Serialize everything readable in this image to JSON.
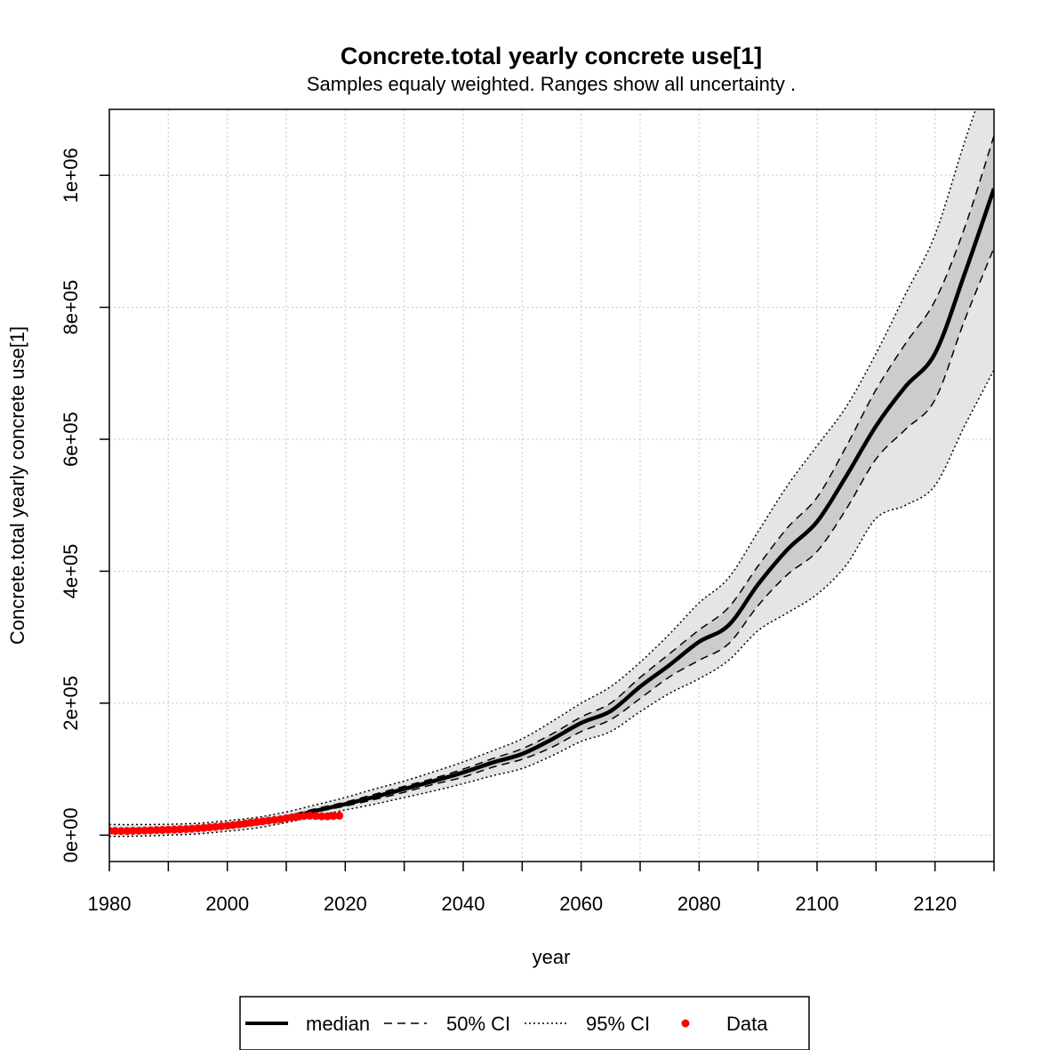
{
  "chart_data": {
    "type": "line",
    "title": "Concrete.total yearly concrete use[1]",
    "subtitle": "Samples equaly weighted. Ranges show  all uncertainty .",
    "xlabel": "year",
    "ylabel": "Concrete.total yearly concrete use[1]",
    "xlim": [
      1980,
      2130
    ],
    "ylim": [
      -40000,
      1100000
    ],
    "grid": true,
    "x_ticks": [
      1980,
      2000,
      2020,
      2040,
      2060,
      2080,
      2100,
      2120
    ],
    "x_minor_ticks": [
      1990,
      2010,
      2030,
      2050,
      2070,
      2090,
      2110,
      2130
    ],
    "x_tick_labels": [
      "1980",
      "2000",
      "2020",
      "2040",
      "2060",
      "2080",
      "2100",
      "2120"
    ],
    "y_ticks": [
      0,
      200000,
      400000,
      600000,
      800000,
      1000000
    ],
    "y_tick_labels": [
      "0e+00",
      "2e+05",
      "4e+05",
      "6e+05",
      "8e+05",
      "1e+06"
    ],
    "legend": {
      "position": "bottom",
      "entries": [
        {
          "label": "median",
          "style": "solid-thick"
        },
        {
          "label": "50% CI",
          "style": "dashed"
        },
        {
          "label": "95% CI",
          "style": "dotted"
        },
        {
          "label": "Data",
          "style": "red-point"
        }
      ]
    },
    "colors": {
      "median": "#000000",
      "band95": "#e5e5e5",
      "band50": "#cccccc",
      "data": "#ff0000",
      "grid": "#cfcfcf"
    },
    "series": [
      {
        "name": "median",
        "x": [
          1980,
          1985,
          1990,
          1995,
          2000,
          2005,
          2010,
          2015,
          2020,
          2025,
          2030,
          2035,
          2040,
          2045,
          2050,
          2055,
          2060,
          2065,
          2070,
          2075,
          2080,
          2085,
          2090,
          2095,
          2100,
          2105,
          2110,
          2115,
          2120,
          2125,
          2130
        ],
        "y": [
          5000,
          6500,
          8000,
          10000,
          13000,
          18000,
          26000,
          37000,
          47000,
          58000,
          70000,
          82000,
          95000,
          110000,
          123000,
          145000,
          170000,
          188000,
          225000,
          258000,
          293000,
          318000,
          380000,
          433000,
          475000,
          545000,
          620000,
          680000,
          730000,
          850000,
          980000
        ]
      },
      {
        "name": "50% CI upper",
        "x": [
          1980,
          1985,
          1990,
          1995,
          2000,
          2005,
          2010,
          2015,
          2020,
          2025,
          2030,
          2035,
          2040,
          2045,
          2050,
          2055,
          2060,
          2065,
          2070,
          2075,
          2080,
          2085,
          2090,
          2095,
          2100,
          2105,
          2110,
          2115,
          2120,
          2125,
          2130
        ],
        "y": [
          7000,
          8000,
          9500,
          12000,
          16000,
          21000,
          29000,
          40000,
          50000,
          62000,
          74000,
          86000,
          100000,
          116000,
          131000,
          153000,
          179000,
          200000,
          239000,
          275000,
          311000,
          345000,
          408000,
          466000,
          512000,
          590000,
          675000,
          745000,
          810000,
          920000,
          1060000
        ]
      },
      {
        "name": "50% CI lower",
        "x": [
          1980,
          1985,
          1990,
          1995,
          2000,
          2005,
          2010,
          2015,
          2020,
          2025,
          2030,
          2035,
          2040,
          2045,
          2050,
          2055,
          2060,
          2065,
          2070,
          2075,
          2080,
          2085,
          2090,
          2095,
          2100,
          2105,
          2110,
          2115,
          2120,
          2125,
          2130
        ],
        "y": [
          3500,
          4500,
          6000,
          8000,
          11000,
          16000,
          24000,
          35000,
          44000,
          54000,
          65000,
          77000,
          88000,
          103000,
          115000,
          133000,
          157000,
          175000,
          207000,
          240000,
          265000,
          290000,
          348000,
          395000,
          430000,
          495000,
          570000,
          615000,
          660000,
          780000,
          890000
        ]
      },
      {
        "name": "95% CI upper",
        "x": [
          1980,
          1985,
          1990,
          1995,
          2000,
          2005,
          2010,
          2015,
          2020,
          2025,
          2030,
          2035,
          2040,
          2045,
          2050,
          2055,
          2060,
          2065,
          2070,
          2075,
          2080,
          2085,
          2090,
          2095,
          2100,
          2105,
          2110,
          2115,
          2120,
          2125,
          2130
        ],
        "y": [
          16000,
          16000,
          16500,
          18000,
          22000,
          27000,
          35000,
          46000,
          57000,
          70000,
          82000,
          96000,
          111000,
          128000,
          146000,
          172000,
          200000,
          225000,
          262000,
          305000,
          352000,
          390000,
          460000,
          530000,
          590000,
          650000,
          730000,
          820000,
          910000,
          1050000,
          1180000
        ]
      },
      {
        "name": "95% CI lower",
        "x": [
          1980,
          1985,
          1990,
          1995,
          2000,
          2005,
          2010,
          2015,
          2020,
          2025,
          2030,
          2035,
          2040,
          2045,
          2050,
          2055,
          2060,
          2065,
          2070,
          2075,
          2080,
          2085,
          2090,
          2095,
          2100,
          2105,
          2110,
          2115,
          2120,
          2125,
          2130
        ],
        "y": [
          -2000,
          -1500,
          0,
          2000,
          6000,
          11000,
          19000,
          29000,
          38000,
          47000,
          57000,
          67000,
          78000,
          90000,
          101000,
          120000,
          142000,
          157000,
          187000,
          215000,
          237000,
          265000,
          310000,
          337000,
          365000,
          410000,
          480000,
          500000,
          530000,
          620000,
          705000
        ]
      },
      {
        "name": "Data",
        "x": [
          1980,
          1981,
          1982,
          1983,
          1984,
          1985,
          1986,
          1987,
          1988,
          1989,
          1990,
          1991,
          1992,
          1993,
          1994,
          1995,
          1996,
          1997,
          1998,
          1999,
          2000,
          2001,
          2002,
          2003,
          2004,
          2005,
          2006,
          2007,
          2008,
          2009,
          2010,
          2011,
          2012,
          2013,
          2014,
          2015,
          2016,
          2017,
          2018,
          2019
        ],
        "y": [
          6500,
          6300,
          6200,
          6300,
          6500,
          6700,
          7000,
          7300,
          7600,
          7900,
          8200,
          8500,
          8800,
          9200,
          9700,
          10300,
          11000,
          11800,
          12600,
          13400,
          14300,
          15300,
          16400,
          17600,
          18800,
          20000,
          21000,
          22000,
          23000,
          24000,
          25500,
          27000,
          28000,
          29000,
          29500,
          29000,
          28500,
          28500,
          29000,
          29500
        ]
      }
    ]
  }
}
